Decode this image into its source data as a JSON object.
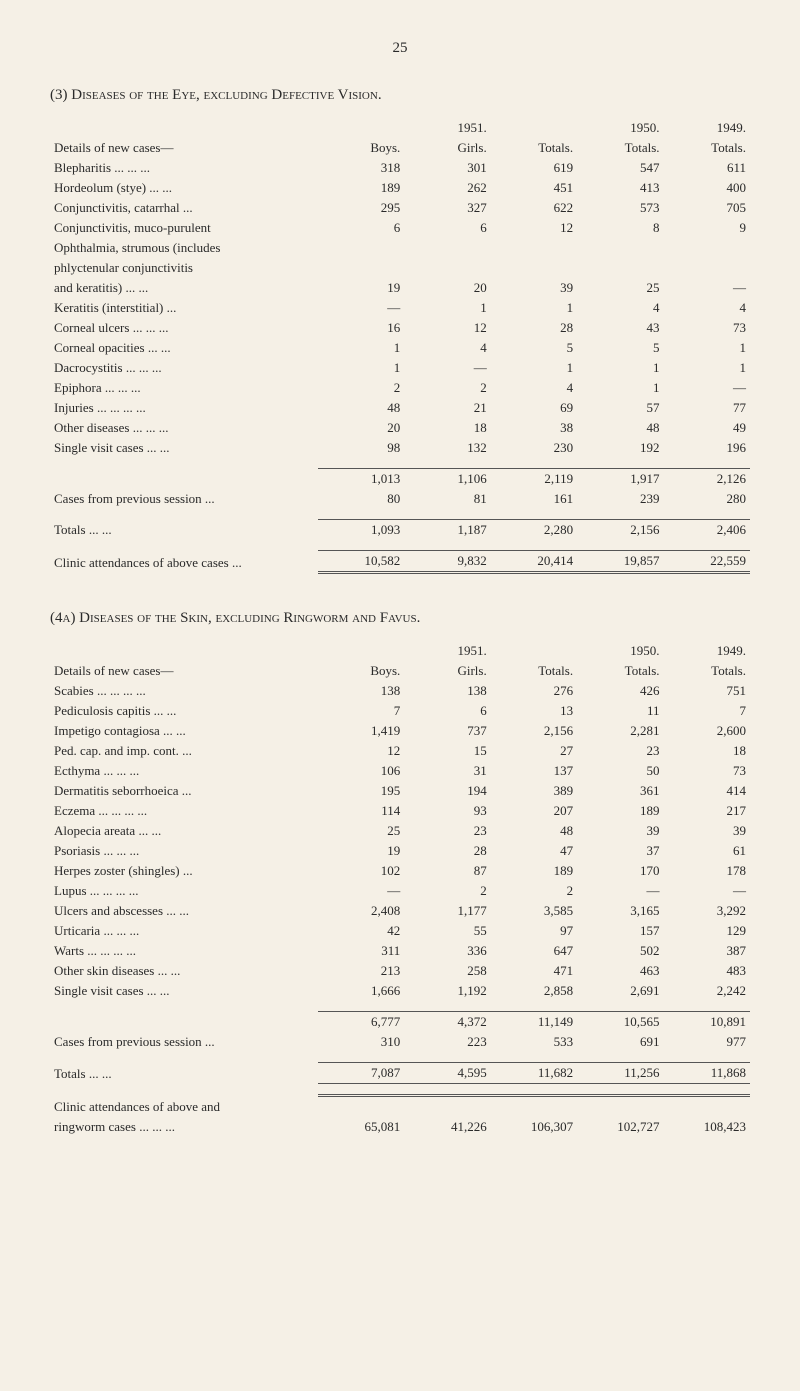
{
  "page_number": "25",
  "section3": {
    "title": "(3) Diseases of the Eye, excluding Defective Vision.",
    "header_row1": [
      "",
      "",
      "1951.",
      "",
      "1950.",
      "1949."
    ],
    "header_row2": [
      "Details of new cases—",
      "Boys.",
      "Girls.",
      "Totals.",
      "Totals.",
      "Totals."
    ],
    "rows": [
      {
        "label": "Blepharitis    ...    ...    ...",
        "c": [
          "318",
          "301",
          "619",
          "547",
          "611"
        ]
      },
      {
        "label": "Hordeolum (stye)    ...    ...",
        "c": [
          "189",
          "262",
          "451",
          "413",
          "400"
        ]
      },
      {
        "label": "Conjunctivitis, catarrhal    ...",
        "c": [
          "295",
          "327",
          "622",
          "573",
          "705"
        ]
      },
      {
        "label": "Conjunctivitis, muco-purulent",
        "c": [
          "6",
          "6",
          "12",
          "8",
          "9"
        ]
      },
      {
        "label": "Ophthalmia, strumous (includes",
        "c": [
          "",
          "",
          "",
          "",
          ""
        ],
        "nolabelnum": true
      },
      {
        "label": "phlyctenular   conjunctivitis",
        "c": [
          "",
          "",
          "",
          "",
          ""
        ],
        "indent": true,
        "nolabelnum": true
      },
      {
        "label": "and keratitis)    ...    ...",
        "c": [
          "19",
          "20",
          "39",
          "25",
          "—"
        ],
        "indent": true
      },
      {
        "label": "Keratitis (interstitial)    ...",
        "c": [
          "—",
          "1",
          "1",
          "4",
          "4"
        ]
      },
      {
        "label": "Corneal ulcers ...    ...    ...",
        "c": [
          "16",
          "12",
          "28",
          "43",
          "73"
        ]
      },
      {
        "label": "Corneal opacities    ...    ...",
        "c": [
          "1",
          "4",
          "5",
          "5",
          "1"
        ]
      },
      {
        "label": "Dacrocystitis    ...    ...    ...",
        "c": [
          "1",
          "—",
          "1",
          "1",
          "1"
        ]
      },
      {
        "label": "Epiphora    ...    ...    ...",
        "c": [
          "2",
          "2",
          "4",
          "1",
          "—"
        ]
      },
      {
        "label": "Injuries ...    ...    ...    ...",
        "c": [
          "48",
          "21",
          "69",
          "57",
          "77"
        ]
      },
      {
        "label": "Other diseases ...    ...    ...",
        "c": [
          "20",
          "18",
          "38",
          "48",
          "49"
        ]
      },
      {
        "label": "Single visit cases    ...    ...",
        "c": [
          "98",
          "132",
          "230",
          "192",
          "196"
        ]
      }
    ],
    "subtotal": {
      "label": "",
      "c": [
        "1,013",
        "1,106",
        "2,119",
        "1,917",
        "2,126"
      ]
    },
    "cases_prev": {
      "label": "Cases from previous session ...",
      "c": [
        "80",
        "81",
        "161",
        "239",
        "280"
      ]
    },
    "totals": {
      "label": "Totals    ...    ...",
      "c": [
        "1,093",
        "1,187",
        "2,280",
        "2,156",
        "2,406"
      ]
    },
    "clinic": {
      "label": "Clinic attendances of above cases ...",
      "c": [
        "10,582",
        "9,832",
        "20,414",
        "19,857",
        "22,559"
      ]
    }
  },
  "section4a": {
    "title": "(4a) Diseases of the Skin, excluding Ringworm and Favus.",
    "header_row1": [
      "",
      "",
      "1951.",
      "",
      "1950.",
      "1949."
    ],
    "header_row2": [
      "Details of new cases—",
      "Boys.",
      "Girls.",
      "Totals.",
      "Totals.",
      "Totals."
    ],
    "rows": [
      {
        "label": "Scabies ...    ...    ...    ...",
        "c": [
          "138",
          "138",
          "276",
          "426",
          "751"
        ]
      },
      {
        "label": "Pediculosis capitis    ...    ...",
        "c": [
          "7",
          "6",
          "13",
          "11",
          "7"
        ]
      },
      {
        "label": "Impetigo contagiosa ...    ...",
        "c": [
          "1,419",
          "737",
          "2,156",
          "2,281",
          "2,600"
        ]
      },
      {
        "label": "Ped. cap. and imp. cont.    ...",
        "c": [
          "12",
          "15",
          "27",
          "23",
          "18"
        ]
      },
      {
        "label": "Ecthyma    ...    ...    ...",
        "c": [
          "106",
          "31",
          "137",
          "50",
          "73"
        ]
      },
      {
        "label": "Dermatitis seborrhoeica    ...",
        "c": [
          "195",
          "194",
          "389",
          "361",
          "414"
        ]
      },
      {
        "label": "Eczema ...    ...    ...    ...",
        "c": [
          "114",
          "93",
          "207",
          "189",
          "217"
        ]
      },
      {
        "label": "Alopecia areata    ...    ...",
        "c": [
          "25",
          "23",
          "48",
          "39",
          "39"
        ]
      },
      {
        "label": "Psoriasis    ...    ...    ...",
        "c": [
          "19",
          "28",
          "47",
          "37",
          "61"
        ]
      },
      {
        "label": "Herpes zoster (shingles)    ...",
        "c": [
          "102",
          "87",
          "189",
          "170",
          "178"
        ]
      },
      {
        "label": "Lupus ...    ...    ...    ...",
        "c": [
          "—",
          "2",
          "2",
          "—",
          "—"
        ]
      },
      {
        "label": "Ulcers and abscesses ...    ...",
        "c": [
          "2,408",
          "1,177",
          "3,585",
          "3,165",
          "3,292"
        ]
      },
      {
        "label": "Urticaria    ...    ...    ...",
        "c": [
          "42",
          "55",
          "97",
          "157",
          "129"
        ]
      },
      {
        "label": "Warts    ...    ...    ...    ...",
        "c": [
          "311",
          "336",
          "647",
          "502",
          "387"
        ]
      },
      {
        "label": "Other skin diseases    ...    ...",
        "c": [
          "213",
          "258",
          "471",
          "463",
          "483"
        ]
      },
      {
        "label": "Single visit cases    ...    ...",
        "c": [
          "1,666",
          "1,192",
          "2,858",
          "2,691",
          "2,242"
        ]
      }
    ],
    "subtotal": {
      "label": "",
      "c": [
        "6,777",
        "4,372",
        "11,149",
        "10,565",
        "10,891"
      ]
    },
    "cases_prev": {
      "label": "Cases from previous session ...",
      "c": [
        "310",
        "223",
        "533",
        "691",
        "977"
      ]
    },
    "totals": {
      "label": "Totals    ...    ...",
      "c": [
        "7,087",
        "4,595",
        "11,682",
        "11,256",
        "11,868"
      ]
    },
    "clinic_line1": "Clinic  attendances  of  above  and",
    "clinic": {
      "label": "ringworm cases ...    ...    ...",
      "c": [
        "65,081",
        "41,226",
        "106,307",
        "102,727",
        "108,423"
      ]
    }
  }
}
